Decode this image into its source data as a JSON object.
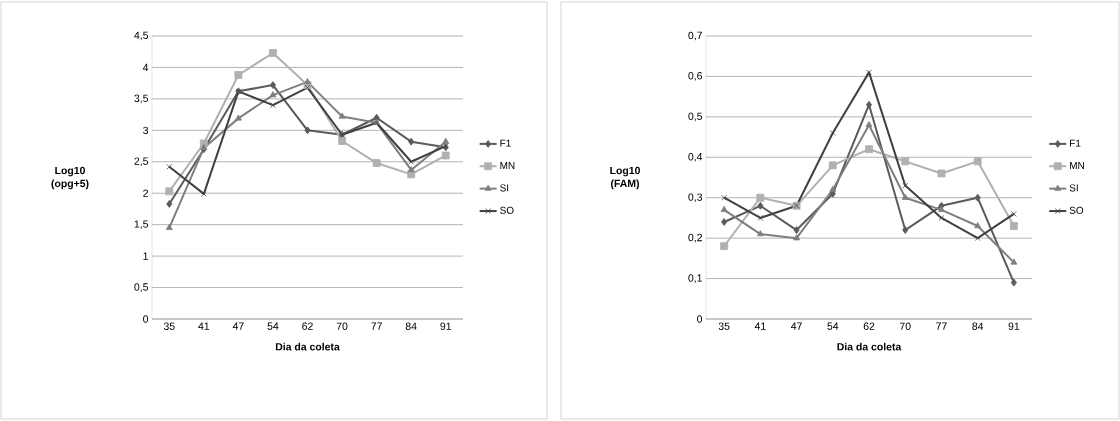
{
  "chart_data": [
    {
      "type": "line",
      "xlabel": "Dia da coleta",
      "ylabel": "Log10 (opg+5)",
      "categories": [
        "35",
        "41",
        "47",
        "54",
        "62",
        "70",
        "77",
        "84",
        "91"
      ],
      "ylim": [
        0,
        4.5
      ],
      "yticks": [
        0,
        {
          "value": 0.5,
          "label": "0,5"
        },
        1,
        {
          "value": 1.5,
          "label": "1,5"
        },
        2,
        {
          "value": 2.5,
          "label": "2,5"
        },
        3,
        {
          "value": 3.5,
          "label": "3,5"
        },
        4,
        {
          "value": 4.5,
          "label": "4,5"
        }
      ],
      "grid": "y",
      "legend": "right",
      "series": [
        {
          "name": "F1",
          "color": "#5a5a5a",
          "marker": "diamond",
          "values": [
            1.83,
            2.7,
            3.62,
            3.72,
            3.0,
            2.93,
            3.2,
            2.82,
            2.73
          ]
        },
        {
          "name": "MN",
          "color": "#b0b0b0",
          "marker": "square",
          "values": [
            2.03,
            2.79,
            3.88,
            4.23,
            3.72,
            2.83,
            2.48,
            2.3,
            2.6
          ]
        },
        {
          "name": "SI",
          "color": "#7f7f7f",
          "marker": "triangle",
          "values": [
            1.45,
            2.72,
            3.19,
            3.56,
            3.77,
            3.22,
            3.12,
            2.37,
            2.82
          ]
        },
        {
          "name": "SO",
          "color": "#404040",
          "marker": "cross",
          "values": [
            2.42,
            1.99,
            3.62,
            3.4,
            3.68,
            2.93,
            3.12,
            2.5,
            2.75
          ]
        }
      ]
    },
    {
      "type": "line",
      "xlabel": "Dia da coleta",
      "ylabel": "Log10 (FAM)",
      "categories": [
        "35",
        "41",
        "47",
        "54",
        "62",
        "70",
        "77",
        "84",
        "91"
      ],
      "ylim": [
        0,
        0.7
      ],
      "yticks": [
        0,
        {
          "value": 0.1,
          "label": "0,1"
        },
        {
          "value": 0.2,
          "label": "0,2"
        },
        {
          "value": 0.3,
          "label": "0,3"
        },
        {
          "value": 0.4,
          "label": "0,4"
        },
        {
          "value": 0.5,
          "label": "0,5"
        },
        {
          "value": 0.6,
          "label": "0,6"
        },
        {
          "value": 0.7,
          "label": "0,7"
        }
      ],
      "grid": "y",
      "legend": "right",
      "series": [
        {
          "name": "F1",
          "color": "#5a5a5a",
          "marker": "diamond",
          "values": [
            0.24,
            0.28,
            0.22,
            0.31,
            0.53,
            0.22,
            0.28,
            0.3,
            0.09
          ]
        },
        {
          "name": "MN",
          "color": "#b0b0b0",
          "marker": "square",
          "values": [
            0.18,
            0.3,
            0.28,
            0.38,
            0.42,
            0.39,
            0.36,
            0.39,
            0.23
          ]
        },
        {
          "name": "SI",
          "color": "#7f7f7f",
          "marker": "triangle",
          "values": [
            0.27,
            0.21,
            0.2,
            0.32,
            0.48,
            0.3,
            0.27,
            0.23,
            0.14
          ]
        },
        {
          "name": "SO",
          "color": "#404040",
          "marker": "cross",
          "values": [
            0.3,
            0.25,
            0.28,
            0.46,
            0.61,
            0.33,
            0.25,
            0.2,
            0.26
          ]
        }
      ]
    }
  ]
}
